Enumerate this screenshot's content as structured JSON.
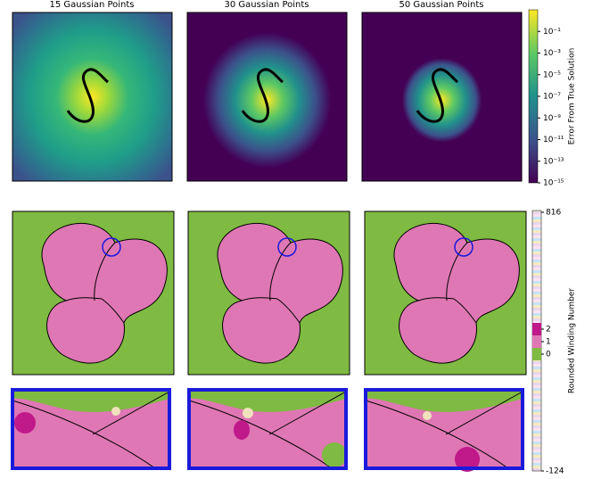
{
  "titles": [
    "15 Gaussian Points",
    "30 Gaussian Points",
    "50 Gaussian Points"
  ],
  "colorbar_error": {
    "label": "Error From True Solution",
    "log_scale": true,
    "ylim": [
      1e-15,
      10
    ],
    "ticks": [
      {
        "value": 0.1,
        "label": "10⁻¹"
      },
      {
        "value": 0.001,
        "label": "10⁻³"
      },
      {
        "value": 1e-05,
        "label": "10⁻⁵"
      },
      {
        "value": 1e-07,
        "label": "10⁻⁷"
      },
      {
        "value": 1e-09,
        "label": "10⁻⁹"
      },
      {
        "value": 1e-11,
        "label": "10⁻¹¹"
      },
      {
        "value": 1e-13,
        "label": "10⁻¹³"
      },
      {
        "value": 1e-15,
        "label": "10⁻¹⁵"
      }
    ]
  },
  "colorbar_winding": {
    "label": "Rounded Winding Number",
    "ylim": [
      -124,
      816
    ],
    "ticks": [
      816,
      2,
      1,
      0,
      -124
    ]
  }
}
